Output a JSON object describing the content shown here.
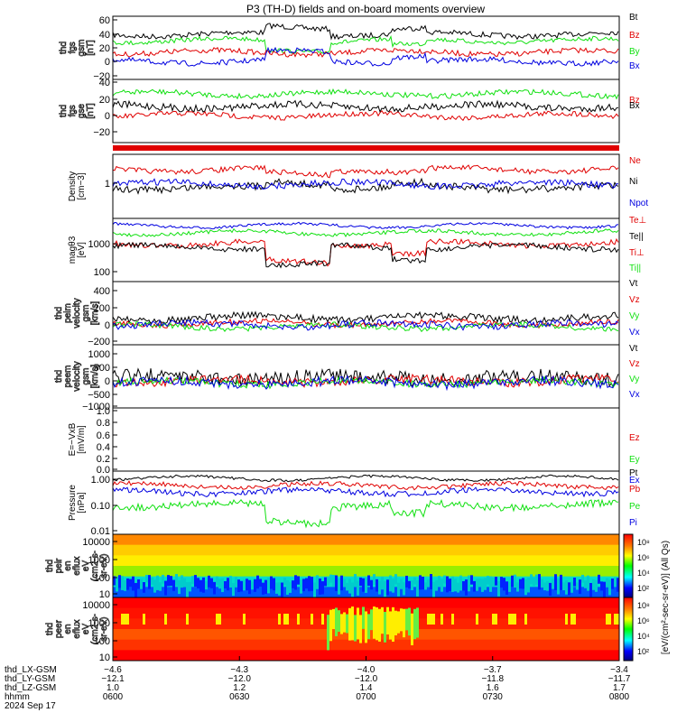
{
  "title": "P3 (TH-D) fields and on-board moments overview",
  "colors": {
    "black": "#000000",
    "red": "#e00000",
    "green": "#10e010",
    "blue": "#0000e0"
  },
  "panels": [
    {
      "id": "fgs-bz",
      "ylabel": [
        "thd",
        "fgs",
        "gsm",
        "[nT]"
      ],
      "ylabel_style": "outline",
      "ticks": [
        "60",
        "40",
        "20",
        "0",
        "−20"
      ],
      "legend": [
        [
          "Bt",
          "black"
        ],
        [
          "Bz",
          "red"
        ],
        [
          "By",
          "green"
        ],
        [
          "Bx",
          "blue"
        ]
      ]
    },
    {
      "id": "fgs-gse",
      "ylabel": [
        "thd",
        "fgs",
        "gse",
        "[nT]"
      ],
      "ylabel_style": "outline",
      "ticks": [
        "40",
        "20",
        "0",
        "−20"
      ],
      "legend": [
        [
          "Bz",
          "red"
        ],
        [
          "Bx",
          "black"
        ]
      ]
    },
    {
      "id": "density",
      "ylabel": [
        "Density",
        "[cm−3]"
      ],
      "ticks": [
        "1"
      ],
      "legend": [
        [
          "Ne",
          "red"
        ],
        [
          "Ni",
          "black"
        ],
        [
          "Npot",
          "blue"
        ]
      ]
    },
    {
      "id": "temp",
      "ylabel": [
        "magθ3",
        "[eV]"
      ],
      "ticks": [
        "1000",
        "100"
      ],
      "legend": [
        [
          "Te⊥",
          "red"
        ],
        [
          "Te||",
          "black"
        ],
        [
          "Ti⊥",
          "red"
        ],
        [
          "Ti||",
          "green"
        ]
      ]
    },
    {
      "id": "peim",
      "ylabel": [
        "thd",
        "peim",
        "velocity",
        "gsm",
        "[km/s]"
      ],
      "ylabel_style": "outline",
      "ticks": [
        "400",
        "200",
        "0",
        "−200"
      ],
      "legend": [
        [
          "Vt",
          "black"
        ],
        [
          "Vz",
          "red"
        ],
        [
          "Vy",
          "green"
        ],
        [
          "Vx",
          "blue"
        ]
      ]
    },
    {
      "id": "peem",
      "ylabel": [
        "thd",
        "peem",
        "velocity",
        "gsm",
        "[km/s]"
      ],
      "ylabel_style": "outline",
      "ticks": [
        "1000",
        "500",
        "0",
        "−500",
        "−1000"
      ],
      "legend": [
        [
          "Vt",
          "black"
        ],
        [
          "Vz",
          "red"
        ],
        [
          "Vy",
          "green"
        ],
        [
          "Vx",
          "blue"
        ]
      ]
    },
    {
      "id": "efield",
      "ylabel": [
        "E=−VxB",
        "[mV/m]"
      ],
      "ticks": [
        "1.0",
        "0.8",
        "0.6",
        "0.4",
        "0.2",
        "0.0"
      ],
      "legend": [
        [
          "Ez",
          "red"
        ],
        [
          "Ey",
          "green"
        ],
        [
          "Ex",
          "blue"
        ]
      ]
    },
    {
      "id": "pressure",
      "ylabel": [
        "Pressure",
        "[nPa]"
      ],
      "ticks": [
        "1.00",
        "0.10",
        "0.01"
      ],
      "legend": [
        [
          "Pt",
          "black"
        ],
        [
          "Pb",
          "red"
        ],
        [
          "Pe",
          "green"
        ],
        [
          "Pi",
          "blue"
        ]
      ]
    },
    {
      "id": "peir",
      "ylabel": [
        "thd",
        "peir",
        "en",
        "eflux",
        "eV",
        "(cm2-s-",
        "sr-eV)"
      ],
      "ylabel_style": "outline",
      "ticks": [
        "10000",
        "1000",
        "100",
        "10"
      ],
      "legend": []
    },
    {
      "id": "peer",
      "ylabel": [
        "thd",
        "peer",
        "en",
        "eflux",
        "eV",
        "(cm2-s-",
        "sr-eV)"
      ],
      "ylabel_style": "outline",
      "ticks": [
        "10000",
        "1000",
        "100",
        "10"
      ],
      "legend": []
    }
  ],
  "colorbar": {
    "ticks": [
      "10⁸",
      "10⁶",
      "10⁴",
      "10²"
    ],
    "ticks_lower": [
      "10⁸",
      "10⁶",
      "10⁴",
      "10²"
    ],
    "label": "[eV/(cm²-sec-sr-eV)] (All Qs)"
  },
  "bottom_axis": {
    "row_labels": [
      "thd_LX-GSM",
      "thd_LY-GSM",
      "thd_LZ-GSM",
      "hhmm",
      "2024 Sep 17"
    ],
    "columns": [
      {
        "lx": "−4.6",
        "ly": "−12.1",
        "lz": "1.0",
        "hhmm": "0600"
      },
      {
        "lx": "−4.3",
        "ly": "−12.0",
        "lz": "1.2",
        "hhmm": "0630"
      },
      {
        "lx": "−4.0",
        "ly": "−12.0",
        "lz": "1.4",
        "hhmm": "0700"
      },
      {
        "lx": "−3.7",
        "ly": "−11.8",
        "lz": "1.6",
        "hhmm": "0730"
      },
      {
        "lx": "−3.4",
        "ly": "−11.7",
        "lz": "1.7",
        "hhmm": "0800"
      }
    ]
  }
}
